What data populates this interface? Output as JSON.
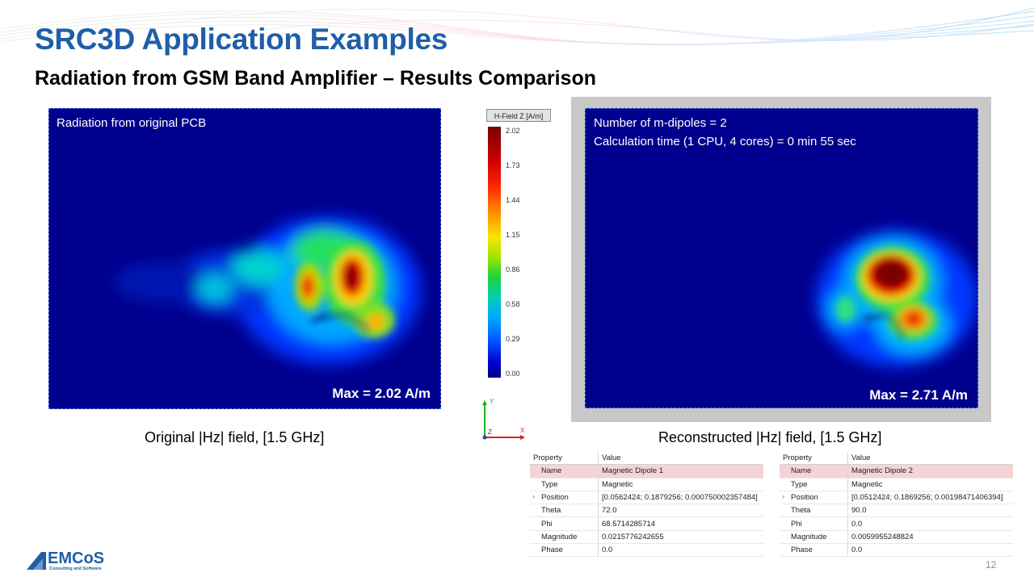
{
  "slide": {
    "title": "SRC3D Application Examples",
    "subtitle": "Radiation from GSM Band Amplifier – Results Comparison",
    "page_number": "12"
  },
  "left_plot": {
    "overlay_text": "Radiation from original PCB",
    "max_label": "Max = 2.02 A/m",
    "caption": "Original |Hz| field, [1.5 GHz]"
  },
  "right_plot": {
    "overlay_line1": "Number of m-dipoles = 2",
    "overlay_line2": "Calculation time (1 CPU, 4 cores) = 0 min 55 sec",
    "max_label": "Max = 2.71 A/m",
    "caption": "Reconstructed |Hz| field, [1.5 GHz]"
  },
  "colorbar": {
    "title": "H-Field Z [A/m]",
    "ticks": [
      "2.02",
      "1.73",
      "1.44",
      "1.15",
      "0.86",
      "0.58",
      "0.29",
      "0.00"
    ]
  },
  "axes_triad": {
    "y": "Y",
    "z": "Z",
    "x": "X"
  },
  "property_tables": [
    {
      "header": [
        "Property",
        "Value"
      ],
      "rows": [
        {
          "key": "Name",
          "value": "Magnetic Dipole 1"
        },
        {
          "key": "Type",
          "value": "Magnetic"
        },
        {
          "key": "Position",
          "value": "[0.0562424; 0.1879256; 0.000750002357484]"
        },
        {
          "key": "Theta",
          "value": "72.0"
        },
        {
          "key": "Phi",
          "value": "68.5714285714"
        },
        {
          "key": "Magnitude",
          "value": "0.0215776242655"
        },
        {
          "key": "Phase",
          "value": "0.0"
        }
      ]
    },
    {
      "header": [
        "Property",
        "Value"
      ],
      "rows": [
        {
          "key": "Name",
          "value": "Magnetic Dipole 2"
        },
        {
          "key": "Type",
          "value": "Magnetic"
        },
        {
          "key": "Position",
          "value": "[0.0512424; 0.1869256; 0.00198471406394]"
        },
        {
          "key": "Theta",
          "value": "90.0"
        },
        {
          "key": "Phi",
          "value": "0.0"
        },
        {
          "key": "Magnitude",
          "value": "0.0059955248824"
        },
        {
          "key": "Phase",
          "value": "0.0"
        }
      ]
    }
  ],
  "logo": {
    "text": "EMCoS",
    "tagline": "Consulting and Software"
  },
  "icons": [
    "chevron-right-icon",
    "axes-triad-icon",
    "emcos-logo"
  ],
  "colors": {
    "title": "#1f5fa8",
    "plot_background": "#00008e",
    "selected_row": "#f6d4d6"
  }
}
